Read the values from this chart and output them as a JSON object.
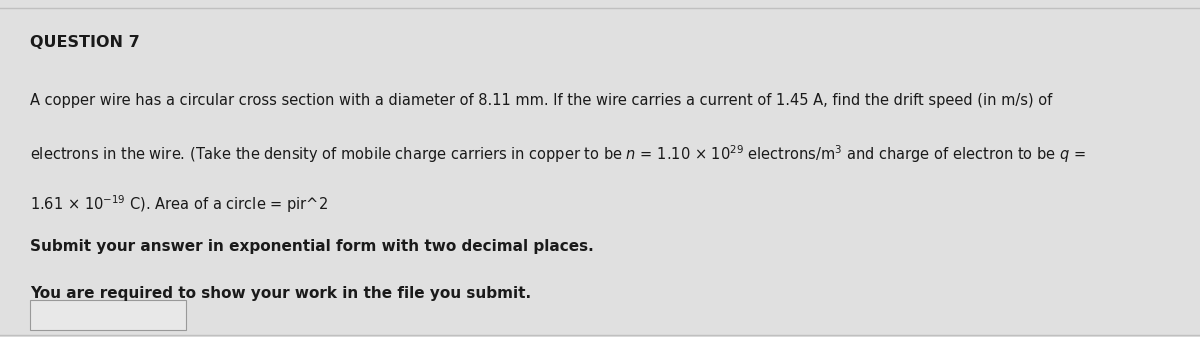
{
  "title": "QUESTION 7",
  "line1": "A copper wire has a circular cross section with a diameter of 8.11 mm. If the wire carries a current of 1.45 A, find the drift speed (in m/s) of",
  "line2": "electrons in the wire. (Take the density of mobile charge carriers in copper to be $n$ = 1.10 × 10$^{29}$ electrons/m$^{3}$ and charge of electron to be $q$ =",
  "line3": "1.61 × 10$^{-19}$ C). Area of a circle = pir^2",
  "bold_line1": "Submit your answer in exponential form with two decimal places.",
  "bold_line2": "You are required to show your work in the file you submit.",
  "bg_color": "#e0e0e0",
  "text_color": "#1a1a1a",
  "title_fontsize": 11.5,
  "body_fontsize": 10.5,
  "bold_fontsize": 11,
  "box_color": "#e8e8e8",
  "box_edge_color": "#999999",
  "top_line_color": "#c0c0c0",
  "bottom_line_color": "#c0c0c0"
}
